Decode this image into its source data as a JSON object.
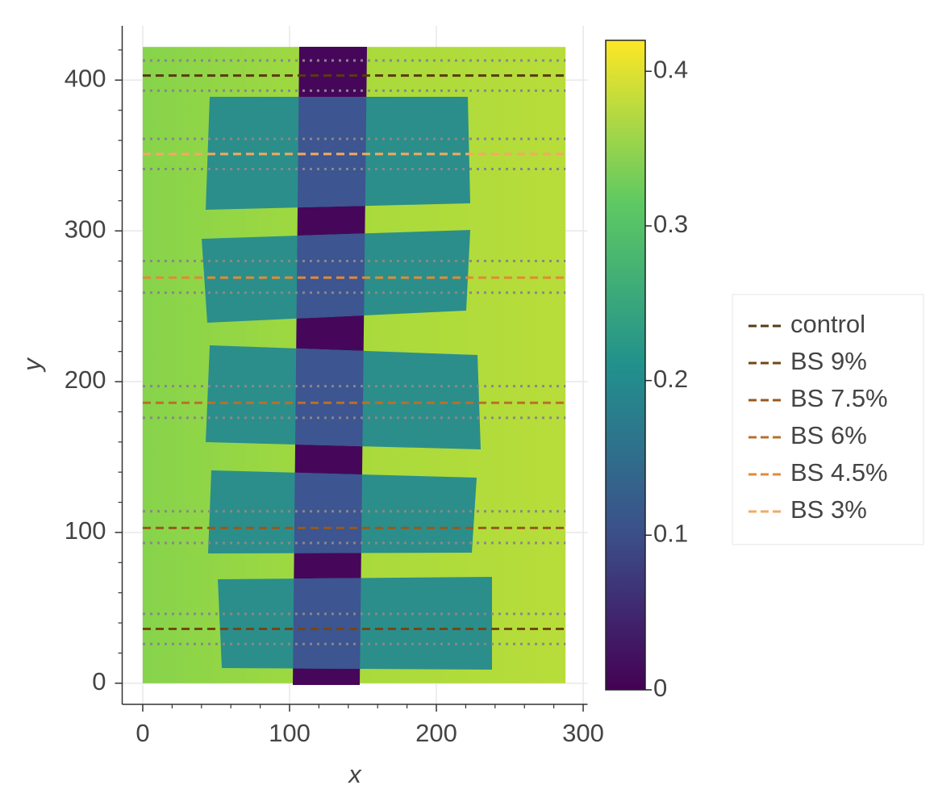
{
  "chart_data": {
    "type": "image",
    "xlabel": "x",
    "ylabel": "y",
    "xlim": [
      -14,
      303
    ],
    "ylim": [
      -14,
      436
    ],
    "xticks": [
      0,
      100,
      200,
      300
    ],
    "yticks": [
      0,
      100,
      200,
      300,
      400
    ],
    "xminorticks": [
      20,
      40,
      60,
      80,
      120,
      140,
      160,
      180,
      220,
      240,
      260,
      280
    ],
    "yminorticks": [
      20,
      40,
      60,
      80,
      120,
      140,
      160,
      180,
      220,
      240,
      260,
      280,
      320,
      340,
      360,
      380,
      420
    ],
    "grid": true,
    "extent": [
      0,
      288,
      0,
      422
    ],
    "band_color": "#888888",
    "series": [
      {
        "name": "control",
        "color": "#5a3a12",
        "y": 403,
        "band": [
          393,
          413
        ]
      },
      {
        "name": "BS 9%",
        "color": "#744712",
        "y": 36,
        "band": [
          26,
          46
        ]
      },
      {
        "name": "BS 7.5%",
        "color": "#98591c",
        "y": 103,
        "band": [
          93,
          114
        ]
      },
      {
        "name": "BS 6%",
        "color": "#b8702c",
        "y": 186,
        "band": [
          176,
          197
        ]
      },
      {
        "name": "BS 4.5%",
        "color": "#e28a34",
        "y": 269,
        "band": [
          259,
          280
        ]
      },
      {
        "name": "BS 3%",
        "color": "#f2aa62",
        "y": 351,
        "band": [
          341,
          361
        ]
      }
    ],
    "colorbar": {
      "clim": [
        0,
        0.42
      ],
      "ticks": [
        0,
        0.1,
        0.2,
        0.3,
        0.4
      ]
    }
  }
}
